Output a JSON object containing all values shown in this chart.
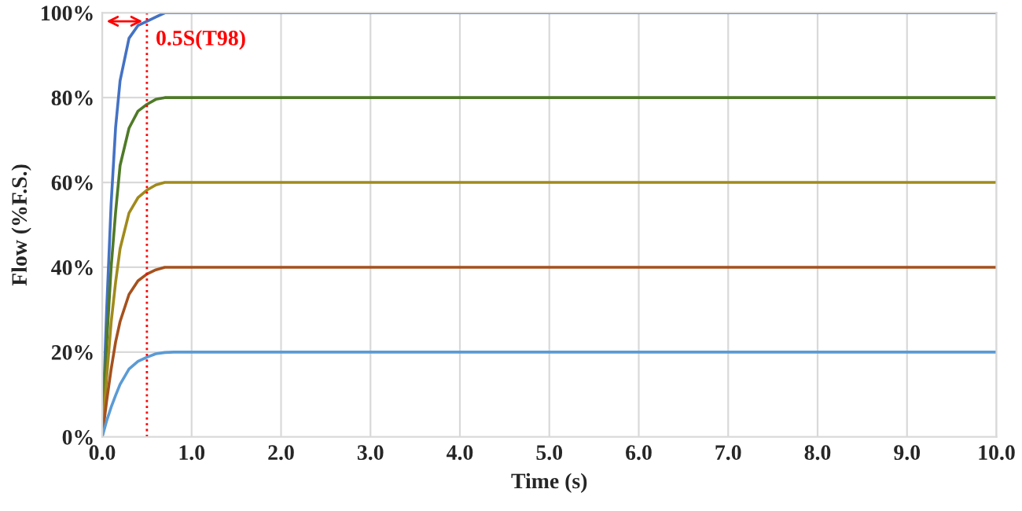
{
  "chart_data": {
    "type": "line",
    "xlabel": "Time (s)",
    "ylabel": "Flow (%F.S.)",
    "x": [
      0,
      0.05,
      0.1,
      0.15,
      0.2,
      0.3,
      0.4,
      0.5,
      0.6,
      0.7,
      0.8,
      10
    ],
    "series": [
      {
        "color": "#4472c4",
        "values": [
          0,
          30,
          55,
          73,
          84,
          94,
          97,
          98,
          99,
          100,
          100,
          100
        ]
      },
      {
        "color": "#4f7a28",
        "values": [
          0,
          22,
          40,
          53,
          64,
          72.8,
          76.8,
          78.4,
          79.6,
          80,
          80,
          80
        ]
      },
      {
        "color": "#a08a1c",
        "values": [
          0,
          14,
          27,
          36.5,
          44.4,
          52.8,
          56.4,
          58.2,
          59.4,
          60,
          60,
          60
        ]
      },
      {
        "color": "#a5511e",
        "values": [
          0,
          8.5,
          16,
          22.4,
          27.2,
          33.6,
          36.8,
          38.4,
          39.4,
          40,
          40,
          40
        ]
      },
      {
        "color": "#5b9bd5",
        "values": [
          0,
          3.8,
          7,
          9.8,
          12.4,
          16,
          17.8,
          18.8,
          19.6,
          19.9,
          20,
          20
        ]
      }
    ],
    "xlim": [
      0,
      10
    ],
    "ylim": [
      0,
      100
    ],
    "xticks": [
      {
        "value": 0,
        "label": "0.0"
      },
      {
        "value": 1,
        "label": "1.0"
      },
      {
        "value": 2,
        "label": "2.0"
      },
      {
        "value": 3,
        "label": "3.0"
      },
      {
        "value": 4,
        "label": "4.0"
      },
      {
        "value": 5,
        "label": "5.0"
      },
      {
        "value": 6,
        "label": "6.0"
      },
      {
        "value": 7,
        "label": "7.0"
      },
      {
        "value": 8,
        "label": "8.0"
      },
      {
        "value": 9,
        "label": "9.0"
      },
      {
        "value": 10,
        "label": "10.0"
      }
    ],
    "yticks": [
      {
        "value": 0,
        "label": "0%"
      },
      {
        "value": 20,
        "label": "20%"
      },
      {
        "value": 40,
        "label": "40%"
      },
      {
        "value": 60,
        "label": "60%"
      },
      {
        "value": 80,
        "label": "80%"
      },
      {
        "value": 100,
        "label": "100%"
      }
    ],
    "ref_lines": [
      {
        "axis": "x",
        "value": 0.5,
        "color": "#ff0000",
        "line_style": "dotted"
      }
    ],
    "annotations": [
      {
        "text": "0.5S(T98)",
        "x": 0.5,
        "y": 98
      }
    ],
    "grid": true,
    "legend": false,
    "marker": "none",
    "line_style": "solid"
  }
}
